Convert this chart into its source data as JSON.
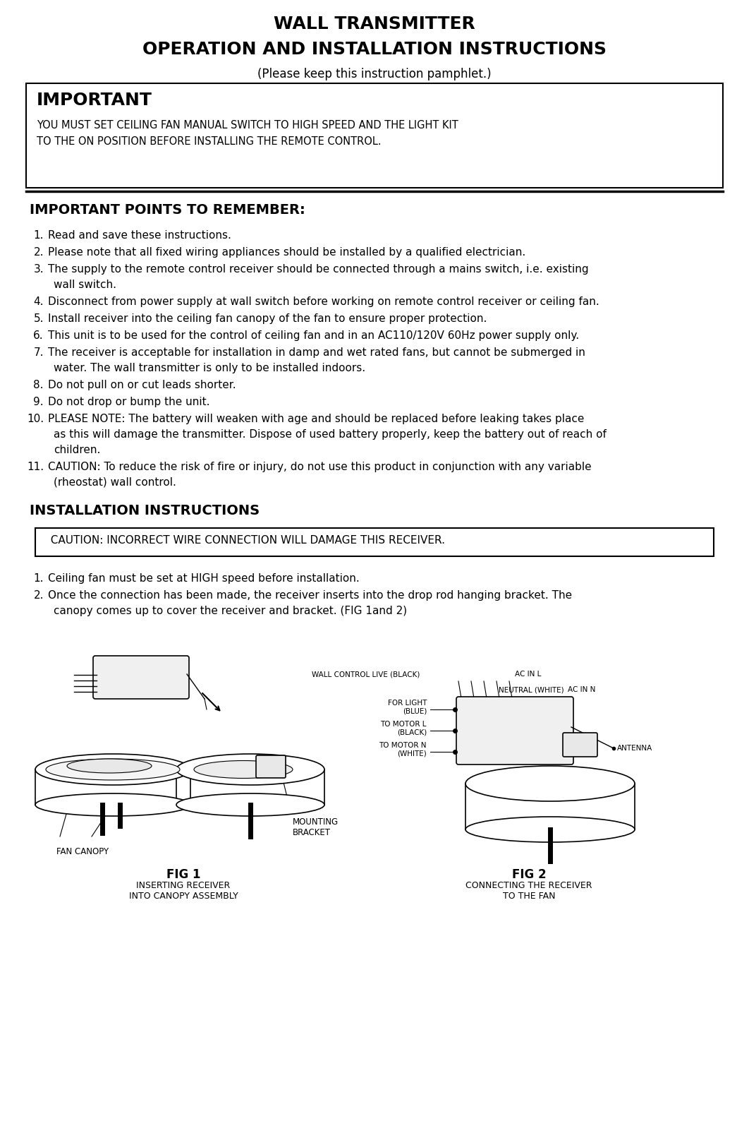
{
  "title1": "WALL TRANSMITTER",
  "title2": "OPERATION AND INSTALLATION INSTRUCTIONS",
  "title3": "(Please keep this instruction pamphlet.)",
  "important_title": "IMPORTANT",
  "important_box_text1": "YOU MUST SET CEILING FAN MANUAL SWITCH TO HIGH SPEED AND THE LIGHT KIT",
  "important_box_text2": "TO THE ON POSITION BEFORE INSTALLING THE REMOTE CONTROL.",
  "section1_title": "IMPORTANT POINTS TO REMEMBER:",
  "points": [
    [
      "1.",
      "Read and save these instructions."
    ],
    [
      "2.",
      "Please note that all fixed wiring appliances should be installed by a qualified electrician."
    ],
    [
      "3.",
      "The supply to the remote control receiver should be connected through a mains switch, i.e. existing",
      "    wall switch."
    ],
    [
      "4.",
      "Disconnect from power supply at wall switch before working on remote control receiver or ceiling fan."
    ],
    [
      "5.",
      "Install receiver into the ceiling fan canopy of the fan to ensure proper protection."
    ],
    [
      "6.",
      "This unit is to be used for the control of ceiling fan and in an AC110/120V 60Hz power supply only."
    ],
    [
      "7.",
      "The receiver is acceptable for installation in damp and wet rated fans, but cannot be submerged in",
      "    water. The wall transmitter is only to be installed indoors."
    ],
    [
      "8.",
      "Do not pull on or cut leads shorter."
    ],
    [
      "9.",
      "Do not drop or bump the unit."
    ],
    [
      "10.",
      "PLEASE NOTE: The battery will weaken with age and should be replaced before leaking takes place",
      "    as this will damage the transmitter. Dispose of used battery properly, keep the battery out of reach of",
      "    children."
    ],
    [
      "11.",
      "   CAUTION: To reduce the risk of fire or injury, do not use this product in conjunction with any variable",
      "    (rheostat) wall control."
    ]
  ],
  "section2_title": "INSTALLATION INSTRUCTIONS",
  "caution_box_text": "  CAUTION: INCORRECT WIRE CONNECTION WILL DAMAGE THIS RECEIVER.",
  "install_points": [
    [
      "1.",
      "Ceiling fan must be set at HIGH speed before installation."
    ],
    [
      "2.",
      "Once the connection has been made, the receiver inserts into the drop rod hanging bracket. The",
      "   canopy comes up to cover the receiver and bracket. (FIG 1and 2)"
    ]
  ],
  "fig1_label": "FIG 1",
  "fig1_sublabel": "INSERTING RECEIVER\nINTO CANOPY ASSEMBLY",
  "fig2_label": "FIG 2",
  "fig2_sublabel": "CONNECTING THE RECEIVER\nTO THE FAN",
  "fig_note_fancanopy": "FAN CANOPY",
  "fig_note_bracket": "MOUNTING\nBRACKET",
  "wire_labels": [
    "WALL CONTROL LIVE (BLACK)",
    "AC IN L",
    "NEUTRAL (WHITE)",
    "AC IN N",
    "FOR LIGHT\n(BLUE)",
    "TO MOTOR L\n(BLACK)",
    "TO MOTOR N\n(WHITE)",
    "ANTENNA"
  ],
  "bg_color": "#ffffff",
  "text_color": "#000000"
}
